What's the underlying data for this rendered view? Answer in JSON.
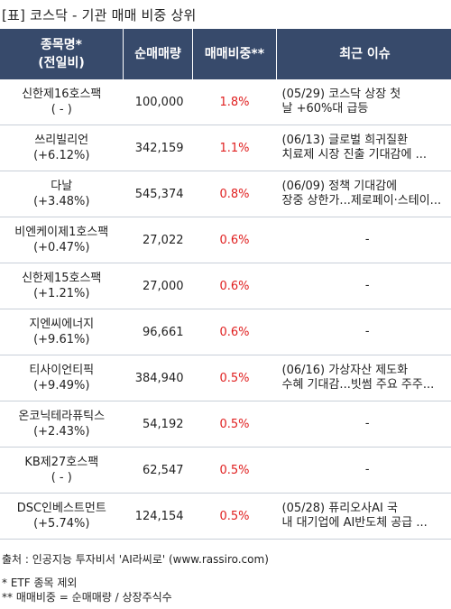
{
  "title": "[표] 코스닥 - 기관 매매 비중 상위",
  "headers": {
    "name_line1": "종목명*",
    "name_line2": "(전일비)",
    "volume": "순매매량",
    "ratio": "매매비중**",
    "issue": "최근 이슈"
  },
  "rows": [
    {
      "name": "신한제16호스팩",
      "change": "( - )",
      "volume": "100,000",
      "ratio": "1.8%",
      "issue1": "(05/29) 코스닥 상장 첫",
      "issue2": "날 +60%대 급등"
    },
    {
      "name": "쓰리빌리언",
      "change": "(+6.12%)",
      "volume": "342,159",
      "ratio": "1.1%",
      "issue1": "(06/13) 글로벌 희귀질환",
      "issue2": "치료제 시장 진출 기대감에 ..."
    },
    {
      "name": "다날",
      "change": "(+3.48%)",
      "volume": "545,374",
      "ratio": "0.8%",
      "issue1": "(06/09) 정책 기대감에",
      "issue2": "장중 상한가...제로페이·스테이..."
    },
    {
      "name": "비엔케이제1호스팩",
      "change": "(+0.47%)",
      "volume": "27,022",
      "ratio": "0.6%",
      "issue1": "-",
      "issue2": ""
    },
    {
      "name": "신한제15호스팩",
      "change": "(+1.21%)",
      "volume": "27,000",
      "ratio": "0.6%",
      "issue1": "-",
      "issue2": ""
    },
    {
      "name": "지엔씨에너지",
      "change": "(+9.61%)",
      "volume": "96,661",
      "ratio": "0.6%",
      "issue1": "-",
      "issue2": ""
    },
    {
      "name": "티사이언티픽",
      "change": "(+9.49%)",
      "volume": "384,940",
      "ratio": "0.5%",
      "issue1": "(06/16) 가상자산 제도화",
      "issue2": "수혜 기대감...빗썸 주요 주주..."
    },
    {
      "name": "온코닉테라퓨틱스",
      "change": "(+2.43%)",
      "volume": "54,192",
      "ratio": "0.5%",
      "issue1": "-",
      "issue2": ""
    },
    {
      "name": "KB제27호스팩",
      "change": "( - )",
      "volume": "62,547",
      "ratio": "0.5%",
      "issue1": "-",
      "issue2": ""
    },
    {
      "name": "DSC인베스트먼트",
      "change": "(+5.74%)",
      "volume": "124,154",
      "ratio": "0.5%",
      "issue1": "(05/28) 퓨리오사AI 국",
      "issue2": "내 대기업에 AI반도체 공급 ..."
    }
  ],
  "footer": {
    "source": "출처 : 인공지능 투자비서 'AI라씨로' (www.rassiro.com)",
    "note1": "* ETF 종목 제외",
    "note2": "** 매매비중 = 순매매량 / 상장주식수"
  },
  "colors": {
    "header_bg": "#374a6b",
    "ratio_text": "#e02020",
    "row_border": "#c8cfd8"
  }
}
